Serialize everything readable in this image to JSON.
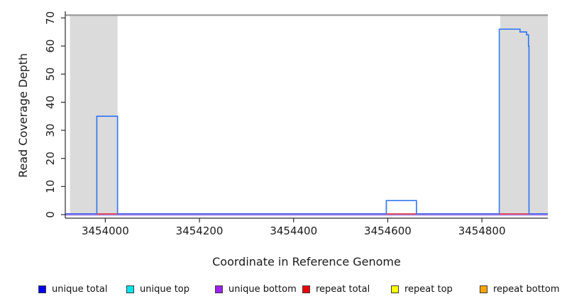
{
  "chart_data": {
    "type": "line",
    "subtype": "step-coverage-plot",
    "title": "",
    "xlabel": "Coordinate in Reference Genome",
    "ylabel": "Read Coverage Depth",
    "xlim": [
      3453915,
      3454940
    ],
    "ylim": [
      0,
      71.8
    ],
    "x_ticks": [
      3454000,
      3454200,
      3454400,
      3454600,
      3454800
    ],
    "y_ticks": [
      0,
      10,
      20,
      30,
      40,
      50,
      60,
      70
    ],
    "grid": false,
    "legend_position": "bottom",
    "max_coverage_line_y": 71,
    "repeat_regions": [
      {
        "from": 3453925,
        "to": 3454026
      },
      {
        "from": 3454839,
        "to": 3454940
      }
    ],
    "series": [
      {
        "name": "unique total",
        "role": "coverage-steps",
        "segments": [
          {
            "steps": [
              {
                "x": 3453982,
                "y": 35
              }
            ],
            "end": 3454026
          },
          {
            "steps": [
              {
                "x": 3454597,
                "y": 5
              }
            ],
            "end": 3454661
          },
          {
            "steps": [
              {
                "x": 3454837,
                "y": 66
              },
              {
                "x": 3454881,
                "y": 65
              },
              {
                "x": 3454895,
                "y": 64
              },
              {
                "x": 3454899,
                "y": 60
              }
            ],
            "end": 3454900
          }
        ]
      },
      {
        "name": "repeat total",
        "role": "zero-line-segments",
        "segments": [
          {
            "from": 3453982,
            "to": 3454026
          },
          {
            "from": 3454597,
            "to": 3454661
          },
          {
            "from": 3454837,
            "to": 3454900
          }
        ]
      },
      {
        "name": "unique bottom",
        "role": "zero-line-full"
      }
    ],
    "colors": {
      "step_line": "#3579F2",
      "zero_blue": "#4A63E6",
      "zero_purple": "#9C7BE8",
      "repeat_zero_red": "#F04B4B",
      "region_fill": "#DBDBDB",
      "max_line": "#919191",
      "axis": "#2b2b2b",
      "tick_label": "#1a1a1a"
    }
  },
  "legend": {
    "items": [
      {
        "label": "unique total",
        "color": "#0000EE"
      },
      {
        "label": "unique top",
        "color": "#00E5EE"
      },
      {
        "label": "unique bottom",
        "color": "#A020F0"
      },
      {
        "label": "repeat total",
        "color": "#EE0000"
      },
      {
        "label": "repeat top",
        "color": "#FFFF00"
      },
      {
        "label": "repeat bottom",
        "color": "#FFA500"
      }
    ]
  }
}
